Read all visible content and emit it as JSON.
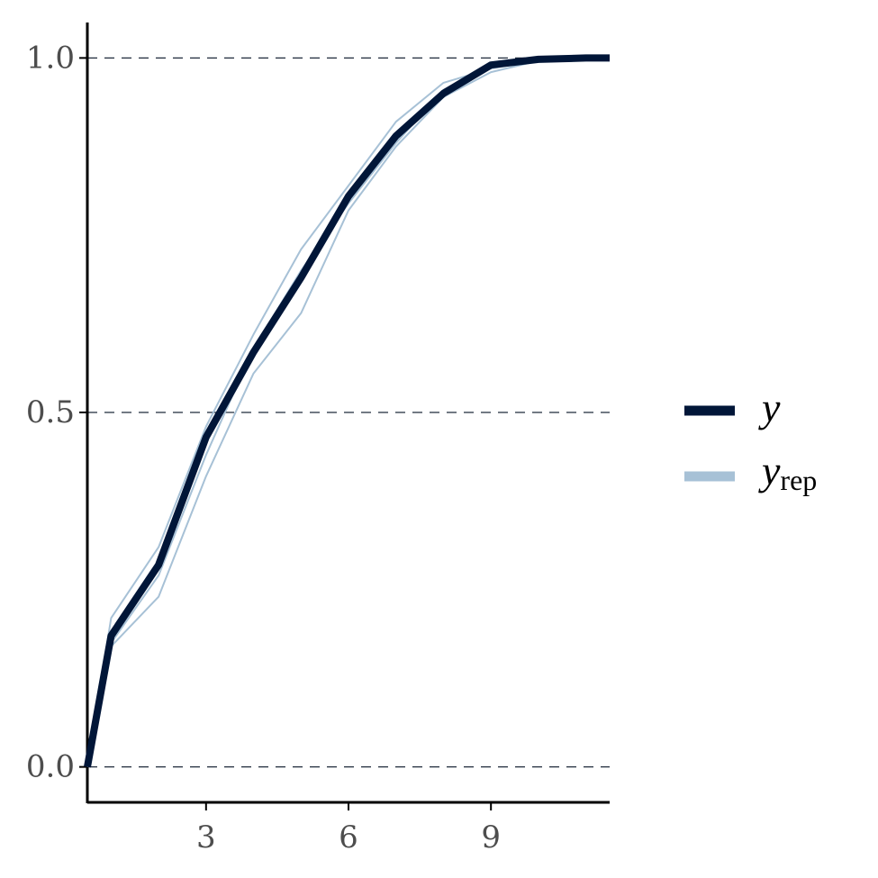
{
  "chart_data": {
    "type": "line",
    "title": "",
    "xlabel": "",
    "ylabel": "",
    "xlim": [
      0.5,
      11.5
    ],
    "ylim": [
      -0.05,
      1.05
    ],
    "x_ticks": [
      3,
      6,
      9
    ],
    "x_tick_labels": [
      "3",
      "6",
      "9"
    ],
    "y_ticks": [
      0.0,
      0.5,
      1.0
    ],
    "y_tick_labels": [
      "0.0",
      "0.5",
      "1.0"
    ],
    "grid": "dashed horizontal lines at y ticks",
    "legend": {
      "position": "right",
      "entries": [
        {
          "label": "y",
          "subscript": "",
          "color": "#011638"
        },
        {
          "label": "y",
          "subscript": "rep",
          "color": "#a7c1d6"
        }
      ]
    },
    "series": [
      {
        "name": "y",
        "role": "observed",
        "color": "#011638",
        "x": [
          0.5,
          1,
          2,
          3,
          4,
          5,
          6,
          7,
          8,
          9,
          10,
          11,
          11.5
        ],
        "values": [
          0.0,
          0.185,
          0.285,
          0.465,
          0.585,
          0.69,
          0.805,
          0.89,
          0.95,
          0.99,
          0.998,
          1.0,
          1.0
        ]
      },
      {
        "name": "yrep 1",
        "role": "replicate",
        "color": "#a7c1d6",
        "x": [
          0.5,
          1,
          2,
          3,
          4,
          5,
          6,
          7,
          8,
          9,
          10,
          11,
          11.5
        ],
        "values": [
          0.0,
          0.21,
          0.31,
          0.48,
          0.61,
          0.73,
          0.82,
          0.91,
          0.965,
          0.985,
          0.997,
          1.0,
          1.0
        ]
      },
      {
        "name": "yrep 2",
        "role": "replicate",
        "color": "#a7c1d6",
        "x": [
          0.5,
          1,
          2,
          3,
          4,
          5,
          6,
          7,
          8,
          9,
          10,
          11,
          11.5
        ],
        "values": [
          0.0,
          0.17,
          0.24,
          0.41,
          0.555,
          0.64,
          0.785,
          0.875,
          0.945,
          0.98,
          0.996,
          1.0,
          1.0
        ]
      },
      {
        "name": "yrep 3",
        "role": "replicate",
        "color": "#a7c1d6",
        "x": [
          0.5,
          1,
          2,
          3,
          4,
          5,
          6,
          7,
          8,
          9,
          10,
          11,
          11.5
        ],
        "values": [
          0.0,
          0.175,
          0.27,
          0.44,
          0.59,
          0.7,
          0.795,
          0.88,
          0.955,
          0.99,
          0.998,
          1.0,
          1.0
        ]
      }
    ]
  }
}
